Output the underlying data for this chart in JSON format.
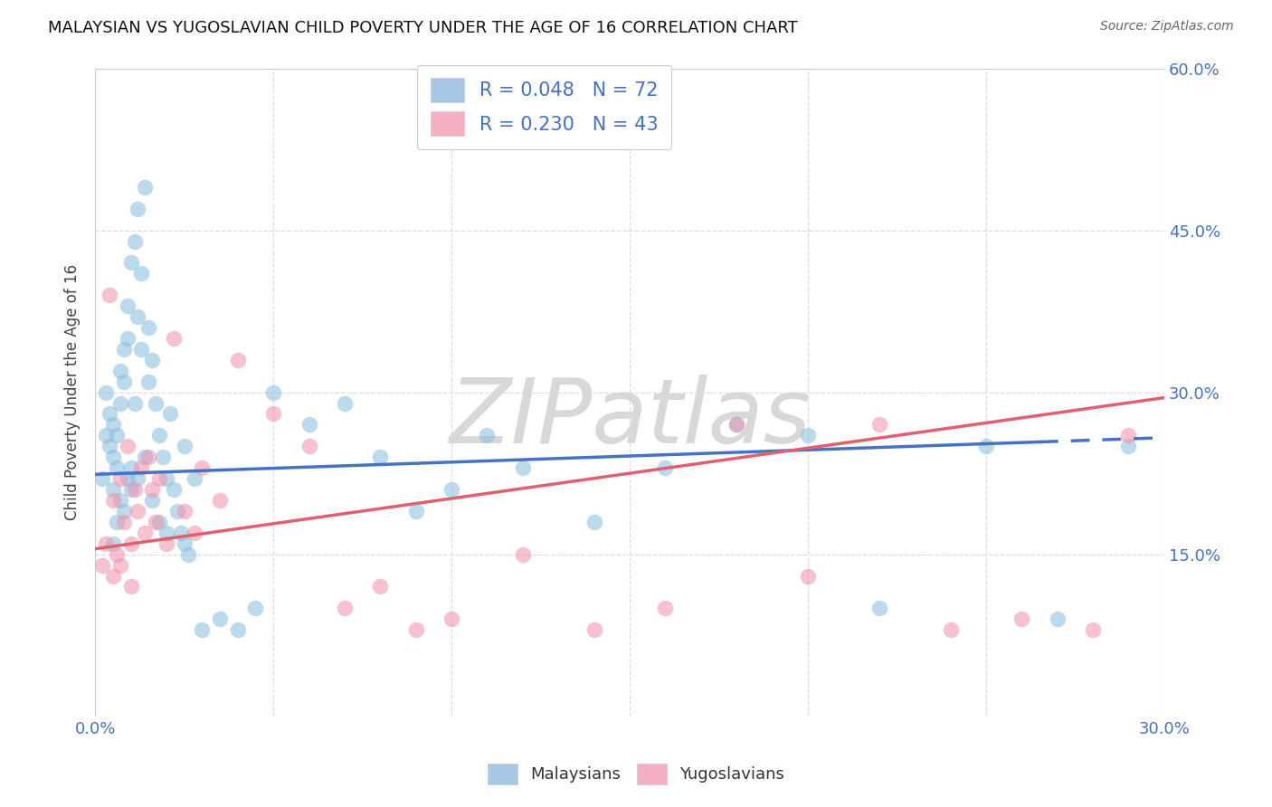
{
  "title": "MALAYSIAN VS YUGOSLAVIAN CHILD POVERTY UNDER THE AGE OF 16 CORRELATION CHART",
  "source": "Source: ZipAtlas.com",
  "ylabel": "Child Poverty Under the Age of 16",
  "xlim": [
    0.0,
    0.3
  ],
  "ylim": [
    0.0,
    0.6
  ],
  "xtick_vals": [
    0.0,
    0.05,
    0.1,
    0.15,
    0.2,
    0.25,
    0.3
  ],
  "ytick_vals": [
    0.15,
    0.3,
    0.45,
    0.6
  ],
  "legend_blue_color": "#a8c8e8",
  "legend_pink_color": "#f4b0c0",
  "scatter_blue_color": "#88bbdd",
  "scatter_pink_color": "#f090a8",
  "line_blue_color": "#4472c4",
  "line_pink_color": "#e06070",
  "background_color": "#ffffff",
  "grid_color": "#dddddd",
  "axis_label_color": "#4472c4",
  "watermark_color": "#d8d8d8",
  "blue_line_start_x": 0.0,
  "blue_line_start_y": 0.224,
  "blue_line_end_x": 0.3,
  "blue_line_end_y": 0.258,
  "pink_line_start_x": 0.0,
  "pink_line_start_y": 0.155,
  "pink_line_end_x": 0.3,
  "pink_line_end_y": 0.295,
  "blue_x": [
    0.002,
    0.003,
    0.003,
    0.004,
    0.004,
    0.005,
    0.005,
    0.005,
    0.006,
    0.006,
    0.007,
    0.007,
    0.008,
    0.008,
    0.009,
    0.009,
    0.01,
    0.01,
    0.011,
    0.011,
    0.012,
    0.012,
    0.013,
    0.013,
    0.014,
    0.015,
    0.015,
    0.016,
    0.017,
    0.018,
    0.019,
    0.02,
    0.021,
    0.022,
    0.023,
    0.024,
    0.025,
    0.026,
    0.028,
    0.03,
    0.035,
    0.04,
    0.045,
    0.05,
    0.06,
    0.07,
    0.08,
    0.09,
    0.1,
    0.11,
    0.12,
    0.14,
    0.16,
    0.18,
    0.2,
    0.22,
    0.25,
    0.27,
    0.29,
    0.005,
    0.006,
    0.007,
    0.008,
    0.009,
    0.01,
    0.012,
    0.014,
    0.016,
    0.018,
    0.02,
    0.025
  ],
  "blue_y": [
    0.22,
    0.26,
    0.3,
    0.25,
    0.28,
    0.21,
    0.24,
    0.27,
    0.23,
    0.26,
    0.32,
    0.29,
    0.34,
    0.31,
    0.35,
    0.38,
    0.23,
    0.42,
    0.44,
    0.29,
    0.47,
    0.37,
    0.34,
    0.41,
    0.49,
    0.31,
    0.36,
    0.33,
    0.29,
    0.26,
    0.24,
    0.22,
    0.28,
    0.21,
    0.19,
    0.17,
    0.25,
    0.15,
    0.22,
    0.08,
    0.09,
    0.08,
    0.1,
    0.3,
    0.27,
    0.29,
    0.24,
    0.19,
    0.21,
    0.26,
    0.23,
    0.18,
    0.23,
    0.27,
    0.26,
    0.1,
    0.25,
    0.09,
    0.25,
    0.16,
    0.18,
    0.2,
    0.19,
    0.22,
    0.21,
    0.22,
    0.24,
    0.2,
    0.18,
    0.17,
    0.16
  ],
  "pink_x": [
    0.002,
    0.003,
    0.004,
    0.005,
    0.006,
    0.007,
    0.008,
    0.009,
    0.01,
    0.011,
    0.012,
    0.013,
    0.014,
    0.015,
    0.016,
    0.017,
    0.018,
    0.02,
    0.022,
    0.025,
    0.028,
    0.03,
    0.035,
    0.04,
    0.05,
    0.06,
    0.07,
    0.08,
    0.09,
    0.1,
    0.12,
    0.14,
    0.16,
    0.18,
    0.2,
    0.22,
    0.24,
    0.26,
    0.28,
    0.29,
    0.005,
    0.007,
    0.01
  ],
  "pink_y": [
    0.14,
    0.16,
    0.39,
    0.2,
    0.15,
    0.22,
    0.18,
    0.25,
    0.16,
    0.21,
    0.19,
    0.23,
    0.17,
    0.24,
    0.21,
    0.18,
    0.22,
    0.16,
    0.35,
    0.19,
    0.17,
    0.23,
    0.2,
    0.33,
    0.28,
    0.25,
    0.1,
    0.12,
    0.08,
    0.09,
    0.15,
    0.08,
    0.1,
    0.27,
    0.13,
    0.27,
    0.08,
    0.09,
    0.08,
    0.26,
    0.13,
    0.14,
    0.12
  ]
}
